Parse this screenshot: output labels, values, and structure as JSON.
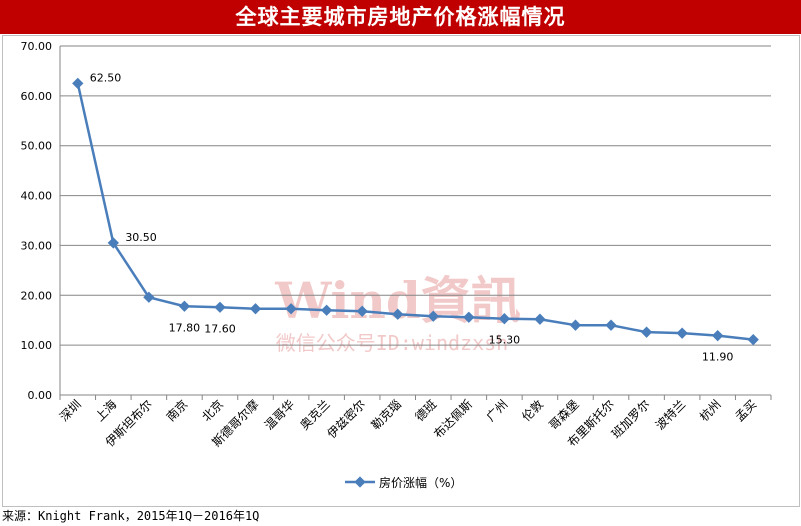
{
  "title": "全球主要城市房地产价格涨幅情况",
  "source": "来源：Knight Frank，2015年1Q－2016年1Q",
  "watermark": {
    "main": "Wind資訊",
    "sub": "微信公众号ID:windzxsh"
  },
  "colors": {
    "title_bg": "#c00000",
    "series": "#4a7ebb",
    "watermark": "#f2c9c9",
    "grid": "#868686"
  },
  "chart_data": {
    "type": "line",
    "categories": [
      "深圳",
      "上海",
      "伊斯坦布尔",
      "南京",
      "北京",
      "斯德哥尔摩",
      "温哥华",
      "奥克兰",
      "伊兹密尔",
      "勒克瑙",
      "德班",
      "布达佩斯",
      "广州",
      "伦敦",
      "哥森堡",
      "布里斯托尔",
      "班加罗尔",
      "波特兰",
      "杭州",
      "孟买"
    ],
    "series": [
      {
        "name": "房价涨幅（%）",
        "values": [
          62.5,
          30.5,
          19.6,
          17.8,
          17.6,
          17.3,
          17.3,
          17.0,
          16.8,
          16.2,
          15.8,
          15.6,
          15.3,
          15.2,
          14.0,
          14.0,
          12.6,
          12.4,
          11.9,
          11.1
        ]
      }
    ],
    "data_labels": [
      {
        "index": 0,
        "text": "62.50"
      },
      {
        "index": 1,
        "text": "30.50"
      },
      {
        "index": 3,
        "text": "17.80"
      },
      {
        "index": 4,
        "text": "17.60"
      },
      {
        "index": 12,
        "text": "15.30"
      },
      {
        "index": 18,
        "text": "11.90"
      }
    ],
    "y_ticks": [
      "0.00",
      "10.00",
      "20.00",
      "30.00",
      "40.00",
      "50.00",
      "60.00",
      "70.00"
    ],
    "ylim": [
      0,
      70
    ],
    "grid": true,
    "legend_position": "bottom"
  }
}
